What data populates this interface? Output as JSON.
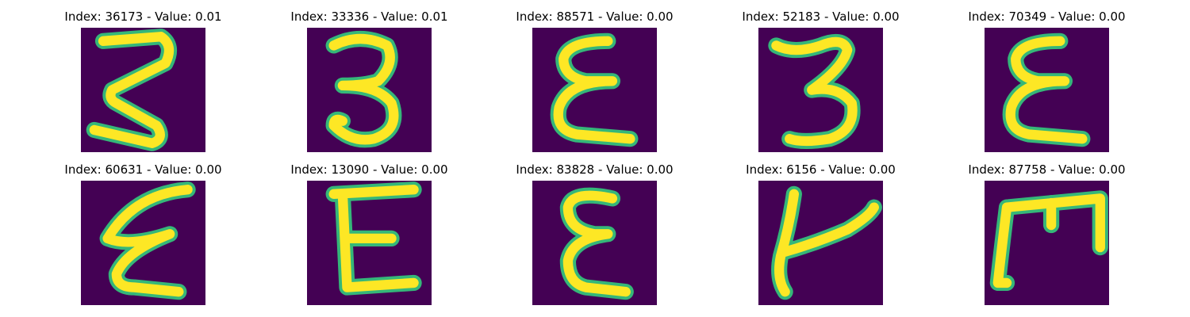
{
  "figure": {
    "background_color": "#440154",
    "stroke_color": "#fde725",
    "edge_color": "#35b779",
    "panels": [
      {
        "title": "Index: 36173 - Value: 0.01",
        "glyph": "z-like-3"
      },
      {
        "title": "Index: 33336 - Value: 0.01",
        "glyph": "three"
      },
      {
        "title": "Index: 88571 - Value: 0.00",
        "glyph": "epsilon-E"
      },
      {
        "title": "Index: 52183 - Value: 0.00",
        "glyph": "three-cursive"
      },
      {
        "title": "Index: 70349 - Value: 0.00",
        "glyph": "epsilon-E"
      },
      {
        "title": "Index: 60631 - Value: 0.00",
        "glyph": "zigzag-E"
      },
      {
        "title": "Index: 13090 - Value: 0.00",
        "glyph": "block-E"
      },
      {
        "title": "Index: 83828 - Value: 0.00",
        "glyph": "curly-E"
      },
      {
        "title": "Index: 6156 - Value: 0.00",
        "glyph": "t-like"
      },
      {
        "title": "Index: 87758 - Value: 0.00",
        "glyph": "m-bracket"
      }
    ]
  }
}
